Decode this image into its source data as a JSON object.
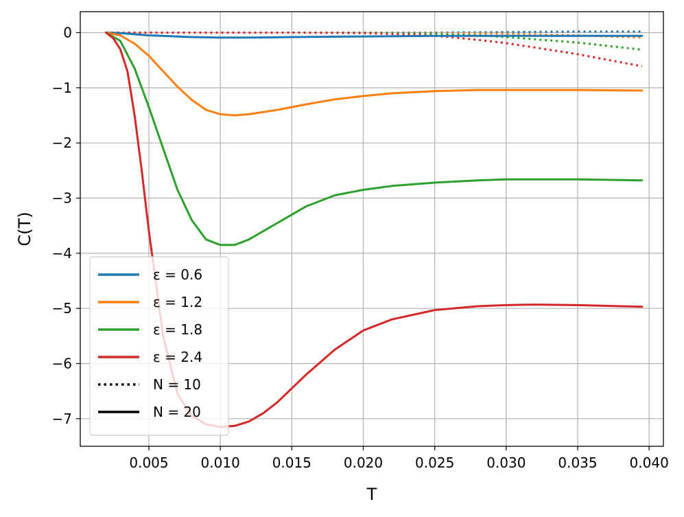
{
  "chart_data": {
    "type": "line",
    "title": "",
    "xlabel": "T",
    "ylabel": "C(T)",
    "xlim": [
      0.0002,
      0.041
    ],
    "ylim": [
      -7.5,
      0.38
    ],
    "x_ticks": [
      0.005,
      0.01,
      0.015,
      0.02,
      0.025,
      0.03,
      0.035,
      0.04
    ],
    "x_tick_labels": [
      "0.005",
      "0.010",
      "0.015",
      "0.020",
      "0.025",
      "0.030",
      "0.035",
      "0.040"
    ],
    "y_ticks": [
      0,
      -1,
      -2,
      -3,
      -4,
      -5,
      -6,
      -7
    ],
    "y_tick_labels": [
      "0",
      "−1",
      "−2",
      "−3",
      "−4",
      "−5",
      "−6",
      "−7"
    ],
    "grid": true,
    "legend_position": "lower-left",
    "legend": [
      {
        "label": "ε = 0.6",
        "color": "#1f77b4",
        "style": "solid"
      },
      {
        "label": "ε = 1.2",
        "color": "#ff7f0e",
        "style": "solid"
      },
      {
        "label": "ε = 1.8",
        "color": "#2ca02c",
        "style": "solid"
      },
      {
        "label": "ε = 2.4",
        "color": "#d62728",
        "style": "solid"
      },
      {
        "label": "N = 10",
        "color": "#000000",
        "style": "dotted"
      },
      {
        "label": "N = 20",
        "color": "#000000",
        "style": "solid"
      }
    ],
    "series": [
      {
        "epsilon": 0.6,
        "N": 20,
        "color": "#1f77b4",
        "style": "solid",
        "x": [
          0.002,
          0.003,
          0.004,
          0.005,
          0.006,
          0.008,
          0.01,
          0.012,
          0.015,
          0.02,
          0.025,
          0.03,
          0.035,
          0.0395
        ],
        "y": [
          0,
          -0.01,
          -0.03,
          -0.05,
          -0.06,
          -0.08,
          -0.09,
          -0.09,
          -0.08,
          -0.07,
          -0.06,
          -0.06,
          -0.06,
          -0.06
        ]
      },
      {
        "epsilon": 1.2,
        "N": 20,
        "color": "#ff7f0e",
        "style": "solid",
        "x": [
          0.002,
          0.003,
          0.004,
          0.005,
          0.006,
          0.007,
          0.008,
          0.009,
          0.01,
          0.011,
          0.012,
          0.014,
          0.016,
          0.018,
          0.02,
          0.022,
          0.025,
          0.028,
          0.03,
          0.032,
          0.035,
          0.0395
        ],
        "y": [
          0,
          -0.05,
          -0.2,
          -0.42,
          -0.7,
          -0.98,
          -1.22,
          -1.4,
          -1.48,
          -1.5,
          -1.48,
          -1.4,
          -1.3,
          -1.21,
          -1.15,
          -1.1,
          -1.06,
          -1.04,
          -1.04,
          -1.04,
          -1.04,
          -1.05
        ]
      },
      {
        "epsilon": 1.8,
        "N": 20,
        "color": "#2ca02c",
        "style": "solid",
        "x": [
          0.002,
          0.003,
          0.004,
          0.005,
          0.006,
          0.007,
          0.008,
          0.009,
          0.01,
          0.011,
          0.012,
          0.014,
          0.016,
          0.018,
          0.02,
          0.022,
          0.025,
          0.028,
          0.03,
          0.032,
          0.035,
          0.0395
        ],
        "y": [
          0,
          -0.15,
          -0.65,
          -1.35,
          -2.1,
          -2.85,
          -3.4,
          -3.75,
          -3.85,
          -3.85,
          -3.75,
          -3.45,
          -3.15,
          -2.95,
          -2.85,
          -2.78,
          -2.72,
          -2.68,
          -2.66,
          -2.66,
          -2.66,
          -2.68
        ]
      },
      {
        "epsilon": 2.4,
        "N": 20,
        "color": "#d62728",
        "style": "solid",
        "x": [
          0.002,
          0.0025,
          0.003,
          0.0035,
          0.004,
          0.0045,
          0.005,
          0.006,
          0.007,
          0.008,
          0.009,
          0.01,
          0.011,
          0.012,
          0.013,
          0.014,
          0.016,
          0.018,
          0.02,
          0.022,
          0.025,
          0.028,
          0.03,
          0.032,
          0.035,
          0.0395
        ],
        "y": [
          0,
          -0.1,
          -0.3,
          -0.7,
          -1.5,
          -2.5,
          -3.6,
          -5.5,
          -6.55,
          -6.95,
          -7.1,
          -7.15,
          -7.13,
          -7.05,
          -6.9,
          -6.7,
          -6.2,
          -5.75,
          -5.4,
          -5.2,
          -5.03,
          -4.96,
          -4.94,
          -4.93,
          -4.94,
          -4.97
        ]
      },
      {
        "epsilon": 0.6,
        "N": 10,
        "color": "#1f77b4",
        "style": "dotted",
        "x": [
          0.002,
          0.005,
          0.01,
          0.015,
          0.02,
          0.025,
          0.03,
          0.035,
          0.0395
        ],
        "y": [
          0,
          0,
          0,
          0,
          0,
          0,
          0.01,
          0.02,
          0.02
        ]
      },
      {
        "epsilon": 1.2,
        "N": 10,
        "color": "#ff7f0e",
        "style": "dotted",
        "x": [
          0.002,
          0.005,
          0.01,
          0.015,
          0.02,
          0.025,
          0.03,
          0.035,
          0.0395
        ],
        "y": [
          0,
          0,
          0,
          0,
          0,
          -0.01,
          -0.02,
          -0.05,
          -0.09
        ]
      },
      {
        "epsilon": 1.8,
        "N": 10,
        "color": "#2ca02c",
        "style": "dotted",
        "x": [
          0.002,
          0.005,
          0.01,
          0.015,
          0.02,
          0.025,
          0.028,
          0.03,
          0.032,
          0.035,
          0.0395
        ],
        "y": [
          0,
          0,
          0,
          0,
          0,
          -0.02,
          -0.05,
          -0.08,
          -0.12,
          -0.18,
          -0.31
        ]
      },
      {
        "epsilon": 2.4,
        "N": 10,
        "color": "#d62728",
        "style": "dotted",
        "x": [
          0.002,
          0.005,
          0.01,
          0.015,
          0.02,
          0.024,
          0.026,
          0.028,
          0.03,
          0.032,
          0.035,
          0.0395
        ],
        "y": [
          0,
          0,
          0,
          0,
          -0.01,
          -0.04,
          -0.08,
          -0.13,
          -0.19,
          -0.27,
          -0.39,
          -0.61
        ]
      }
    ]
  }
}
